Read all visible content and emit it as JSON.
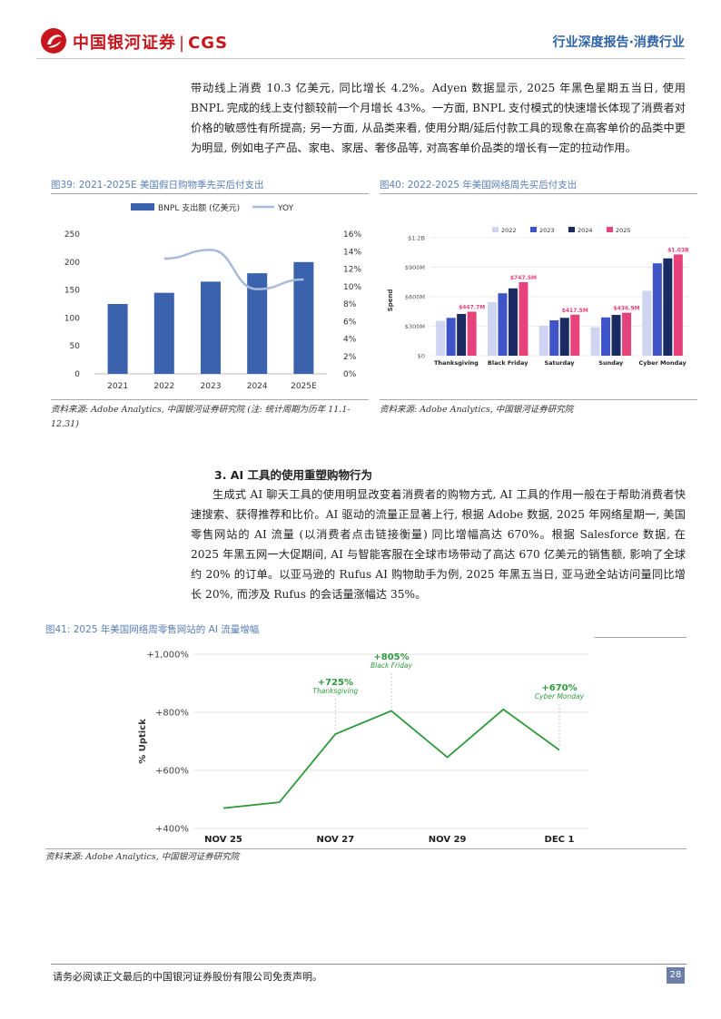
{
  "header": {
    "logo_cn": "中国银河证券",
    "logo_en": "CGS",
    "logo_sep": "|",
    "right_title": "行业深度报告·消费行业"
  },
  "body": {
    "para1": "带动线上消费 10.3 亿美元, 同比增长 4.2%。Adyen 数据显示, 2025 年黑色星期五当日, 使用 BNPL 完成的线上支付额较前一个月增长 43%。一方面, BNPL 支付模式的快速增长体现了消费者对价格的敏感性有所提高; 另一方面, 从品类来看, 使用分期/延后付款工具的现象在高客单价的品类中更为明显, 例如电子产品、家电、家居、奢侈品等, 对高客单价品类的增长有一定的拉动作用。",
    "section_heading": "3. AI 工具的使用重塑购物行为",
    "para2": "生成式 AI 聊天工具的使用明显改变着消费者的购物方式, AI 工具的作用一般在于帮助消费者快速搜索、获得推荐和比价。AI 驱动的流量正显著上行, 根据 Adobe 数据, 2025 年网络星期一, 美国零售网站的 AI 流量 (以消费者点击链接衡量) 同比增幅高达 670%。根据 Salesforce 数据, 在 2025 年黑五网一大促期间, AI 与智能客服在全球市场带动了高达 670 亿美元的销售额, 影响了全球约 20% 的订单。以亚马逊的 Rufus AI 购物助手为例, 2025 年黑五当日, 亚马逊全站访问量同比增长 20%, 而涉及 Rufus 的会话量涨幅达 35%。"
  },
  "figures": {
    "fig39_caption": "图39: 2021-2025E 美国假日购物季先买后付支出",
    "fig39_source": "资料来源: Adobe Analytics, 中国银河证券研究院 (注: 统计周期为历年 11.1-12.31)",
    "fig40_caption": "图40: 2022-2025 年美国网络周先买后付支出",
    "fig40_source": "资料来源: Adobe Analytics, 中国银河证券研究院",
    "fig41_caption": "图41: 2025 年美国网络周零售网站的 AI 流量增幅",
    "fig41_source": "资料来源: Adobe Analytics, 中国银河证券研究院"
  },
  "chart_data": [
    {
      "type": "bar",
      "categories": [
        "2021",
        "2022",
        "2023",
        "2024",
        "2025E"
      ],
      "series": [
        {
          "name": "BNPL 支出额 (亿美元)",
          "values": [
            125,
            145,
            165,
            180,
            200
          ],
          "color": "#3b62ad"
        },
        {
          "name": "YOY",
          "type": "line",
          "axis": "right",
          "values": [
            null,
            13.2,
            14.2,
            9.7,
            10.8
          ],
          "color": "#a9b9d9"
        }
      ],
      "yticks_left": [
        "0",
        "50",
        "100",
        "150",
        "200",
        "250"
      ],
      "yticks_right": [
        "0%",
        "2%",
        "4%",
        "6%",
        "8%",
        "10%",
        "12%",
        "14%",
        "16%"
      ],
      "ylim_left": [
        0,
        250
      ],
      "ylim_right": [
        0,
        16
      ],
      "grid": true,
      "legend": "top"
    },
    {
      "type": "bar",
      "categories": [
        "Thanksgiving",
        "Black Friday",
        "Saturday",
        "Sunday",
        "Cyber Monday"
      ],
      "series": [
        {
          "name": "2022",
          "values": [
            355,
            545,
            305,
            290,
            660
          ],
          "color": "#cfd4f1"
        },
        {
          "name": "2023",
          "values": [
            385,
            635,
            360,
            390,
            940
          ],
          "color": "#3e54c8"
        },
        {
          "name": "2024",
          "values": [
            425,
            685,
            385,
            415,
            990
          ],
          "color": "#1b2a63"
        },
        {
          "name": "2025",
          "values": [
            447.7,
            747.5,
            417.5,
            436.9,
            1030
          ],
          "color": "#e6427b"
        }
      ],
      "labels_2025": [
        "$447.7M",
        "$747.5M",
        "$417.5M",
        "$436.9M",
        "$1.03B"
      ],
      "yticks": [
        "$0",
        "$300M",
        "$600M",
        "$900M",
        "$1.2B"
      ],
      "ylim": [
        0,
        1200
      ],
      "ylabel": "Spend",
      "grid": true,
      "legend": "top"
    },
    {
      "type": "line",
      "x": [
        "Nov 25",
        "Nov 26",
        "Nov 27",
        "Nov 28",
        "Nov 29",
        "Nov 30",
        "Dec 1"
      ],
      "values": [
        470,
        490,
        725,
        805,
        645,
        810,
        670
      ],
      "xticks": [
        "NOV 25",
        "NOV 27",
        "NOV 29",
        "DEC 1"
      ],
      "yticks": [
        "+400%",
        "+600%",
        "+800%",
        "+1,000%"
      ],
      "ylim": [
        400,
        1000
      ],
      "ylabel": "% Uptick",
      "annotations": [
        {
          "label": "+725%",
          "sub": "Thanksgiving"
        },
        {
          "label": "+805%",
          "sub": "Black Friday"
        },
        {
          "label": "+670%",
          "sub": "Cyber Monday"
        }
      ],
      "color": "#2e9a3c"
    }
  ]
}
